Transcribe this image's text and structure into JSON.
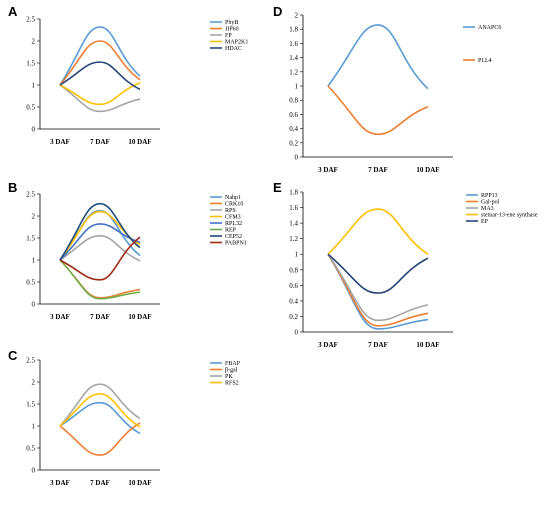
{
  "chart_data": [
    {
      "panel": "A",
      "type": "line",
      "categories": [
        "3 DAF",
        "7 DAF",
        "10 DAF"
      ],
      "ylim": [
        0,
        2.5
      ],
      "yticks": [
        "0",
        "0.5",
        "1",
        "1.5",
        "2",
        "2.5"
      ],
      "legend": "right",
      "series": [
        {
          "name": "PhyB",
          "color": "#5B9BD5",
          "values": [
            1,
            2.32,
            1.2
          ]
        },
        {
          "name": "JIP60",
          "color": "#ED7D31",
          "values": [
            1,
            2.0,
            1.12
          ]
        },
        {
          "name": "FP",
          "color": "#A5A5A5",
          "values": [
            1,
            0.4,
            0.68
          ]
        },
        {
          "name": "MAP2K1",
          "color": "#FFC000",
          "values": [
            1,
            0.56,
            1.05
          ]
        },
        {
          "name": "HDAC",
          "color": "#264478",
          "values": [
            1,
            1.52,
            0.9
          ]
        }
      ]
    },
    {
      "panel": "B",
      "type": "line",
      "categories": [
        "3 DAF",
        "7 DAF",
        "10 DAF"
      ],
      "ylim": [
        0,
        2.5
      ],
      "yticks": [
        "0",
        "0.5",
        "1",
        "1.5",
        "2",
        "2.5"
      ],
      "legend": "right",
      "series": [
        {
          "name": "Nahp1",
          "color": "#5B9BD5",
          "values": [
            1,
            2.12,
            1.1
          ]
        },
        {
          "name": "CRK10",
          "color": "#ED7D31",
          "values": [
            1,
            0.14,
            0.33
          ]
        },
        {
          "name": "RPS",
          "color": "#A5A5A5",
          "values": [
            1,
            1.55,
            0.98
          ]
        },
        {
          "name": "CFM3",
          "color": "#FFC000",
          "values": [
            1,
            2.1,
            1.35
          ]
        },
        {
          "name": "RPL32",
          "color": "#4472C4",
          "values": [
            1,
            1.82,
            1.4
          ]
        },
        {
          "name": "REP",
          "color": "#70AD47",
          "values": [
            1,
            0.12,
            0.27
          ]
        },
        {
          "name": "CEP52",
          "color": "#1F4E79",
          "values": [
            1,
            2.28,
            1.28
          ]
        },
        {
          "name": "PABPN1",
          "color": "#9E2A12",
          "values": [
            1,
            0.55,
            1.52
          ]
        }
      ]
    },
    {
      "panel": "C",
      "type": "line",
      "categories": [
        "3 DAF",
        "7 DAF",
        "10 DAF"
      ],
      "ylim": [
        0,
        2.5
      ],
      "yticks": [
        "0",
        "0.5",
        "1",
        "1.5",
        "2",
        "2.5"
      ],
      "legend": "right",
      "series": [
        {
          "name": "FBAP",
          "color": "#5B9BD5",
          "values": [
            1,
            1.53,
            0.83
          ]
        },
        {
          "name": "β-gal",
          "color": "#ED7D31",
          "values": [
            1,
            0.34,
            1.07
          ]
        },
        {
          "name": "PK",
          "color": "#A5A5A5",
          "values": [
            1,
            1.95,
            1.17
          ]
        },
        {
          "name": "RFS2",
          "color": "#FFC000",
          "values": [
            1,
            1.73,
            0.98
          ]
        }
      ]
    },
    {
      "panel": "D",
      "type": "line",
      "categories": [
        "3 DAF",
        "7 DAF",
        "10 DAF"
      ],
      "ylim": [
        0,
        2
      ],
      "yticks": [
        "0",
        "0.2",
        "0.4",
        "0.6",
        "0.8",
        "1",
        "1.2",
        "1.4",
        "1.6",
        "1.8",
        "2"
      ],
      "legend": "right",
      "series": [
        {
          "name": "ANAPC6",
          "color": "#5B9BD5",
          "values": [
            1,
            1.86,
            0.96
          ]
        },
        {
          "name": "PLL4",
          "color": "#ED7D31",
          "values": [
            1,
            0.32,
            0.71
          ]
        }
      ]
    },
    {
      "panel": "E",
      "type": "line",
      "categories": [
        "3 DAF",
        "7 DAF",
        "10 DAF"
      ],
      "ylim": [
        0,
        1.8
      ],
      "yticks": [
        "0",
        "0.2",
        "0.4",
        "0.6",
        "0.8",
        "1",
        "1.2",
        "1.4",
        "1.6",
        "1.8"
      ],
      "legend": "right",
      "series": [
        {
          "name": "RPP13",
          "color": "#5B9BD5",
          "values": [
            1,
            0.04,
            0.16
          ]
        },
        {
          "name": "Gal-pol",
          "color": "#ED7D31",
          "values": [
            1,
            0.08,
            0.24
          ]
        },
        {
          "name": "MA3",
          "color": "#A5A5A5",
          "values": [
            1,
            0.15,
            0.35
          ]
        },
        {
          "name": "stemar-13-ene synthase",
          "color": "#FFC000",
          "values": [
            1,
            1.58,
            1.0
          ]
        },
        {
          "name": "EP",
          "color": "#264478",
          "values": [
            1,
            0.5,
            0.95
          ]
        }
      ]
    }
  ]
}
